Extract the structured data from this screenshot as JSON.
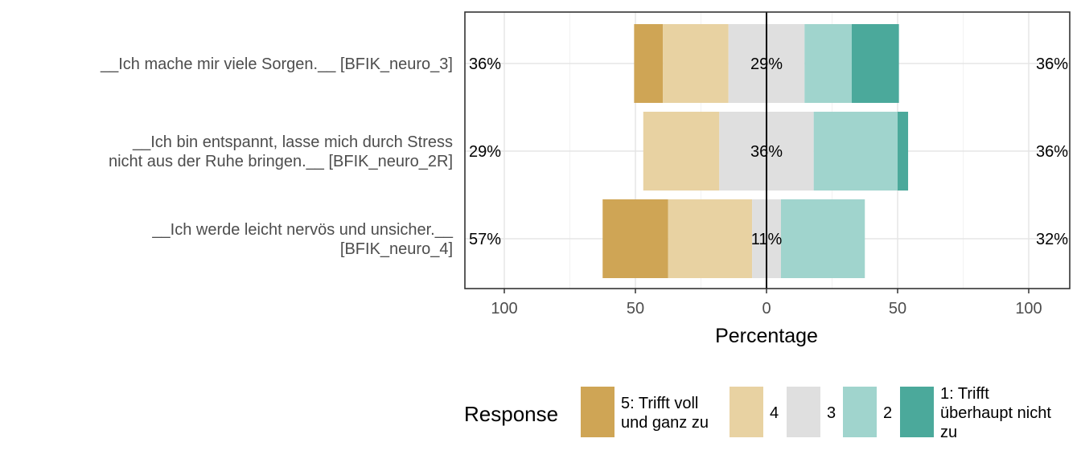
{
  "chart_data": {
    "type": "bar",
    "subtype": "diverging-stacked-likert",
    "xlabel": "Percentage",
    "xlim": [
      -100,
      100
    ],
    "x_ticks": [
      "100",
      "50",
      "0",
      "50",
      "100"
    ],
    "grid": true,
    "legend_title": "Response",
    "legend_position": "bottom",
    "categories": [
      [
        "__Ich mache mir viele Sorgen.__ [BFIK_neuro_3]"
      ],
      [
        "__Ich bin entspannt, lasse mich durch Stress",
        "nicht aus der Ruhe bringen.__ [BFIK_neuro_2R]"
      ],
      [
        "__Ich werde leicht nervös und unsicher.__",
        "[BFIK_neuro_4]"
      ]
    ],
    "series": [
      {
        "name": [
          "5: Trifft voll",
          "und ganz zu"
        ],
        "color": "#CFA555",
        "values": [
          11,
          0,
          25
        ]
      },
      {
        "name": [
          "4"
        ],
        "color": "#E8D2A2",
        "values": [
          25,
          29,
          32
        ]
      },
      {
        "name": [
          "3"
        ],
        "color": "#DFDFDF",
        "values": [
          29,
          36,
          11
        ]
      },
      {
        "name": [
          "2"
        ],
        "color": "#A0D4CD",
        "values": [
          18,
          32,
          32
        ]
      },
      {
        "name": [
          "1: Trifft",
          "überhaupt nicht",
          "zu"
        ],
        "color": "#4BA99B",
        "values": [
          18,
          4,
          0
        ]
      }
    ],
    "left_labels": [
      "36%",
      "29%",
      "57%"
    ],
    "center_labels": [
      "29%",
      "36%",
      "11%"
    ],
    "right_labels": [
      "36%",
      "36%",
      "32%"
    ]
  }
}
